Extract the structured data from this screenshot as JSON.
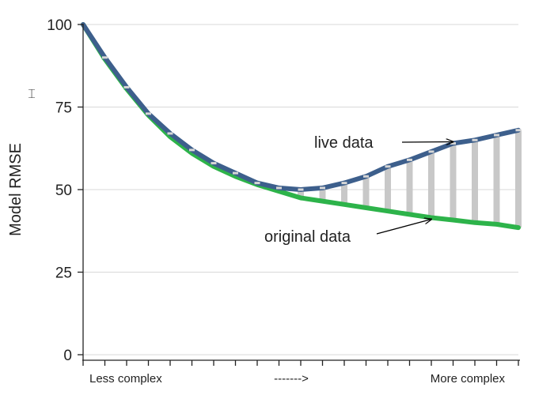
{
  "chart_data": {
    "type": "line",
    "ylabel": "Model RMSE",
    "ylim": [
      0,
      100
    ],
    "yticks": [
      0,
      25,
      50,
      75,
      100
    ],
    "grid": "horizontal",
    "x_text": {
      "left": "Less complex",
      "middle": "------->",
      "right": "More complex"
    },
    "x": [
      0,
      1,
      2,
      3,
      4,
      5,
      6,
      7,
      8,
      9,
      10,
      11,
      12,
      13,
      14,
      15,
      16,
      17,
      18,
      19,
      20
    ],
    "series": [
      {
        "key": "live",
        "values": [
          100,
          90,
          81,
          73,
          67,
          62,
          58,
          55,
          52,
          50.5,
          50,
          50.5,
          52,
          54,
          57,
          59,
          61.5,
          64,
          65,
          66.5,
          68
        ],
        "color": "#3d5f8c"
      },
      {
        "key": "original",
        "values": [
          100,
          89.5,
          80.5,
          72.5,
          66,
          61,
          57,
          54,
          51.5,
          49.5,
          47.5,
          46.5,
          45.5,
          44.5,
          43.5,
          42.5,
          41.5,
          40.8,
          40,
          39.5,
          38.5
        ],
        "color": "#2db34a"
      }
    ],
    "gap_bar_color": "#c8c8c8",
    "annotations": [
      {
        "text": "live data",
        "target_series": "live",
        "target_x": 17
      },
      {
        "text": "original data",
        "target_series": "original",
        "target_x": 16
      }
    ]
  }
}
